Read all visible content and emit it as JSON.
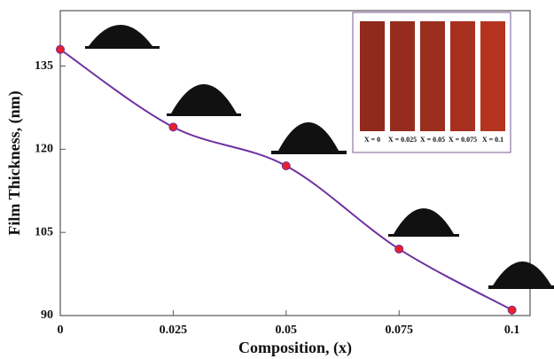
{
  "chart_data": {
    "type": "line",
    "x_label": "Composition, (x)",
    "y_label": "Film Thickness, (nm)",
    "x": [
      0,
      0.025,
      0.05,
      0.075,
      0.1
    ],
    "series": [
      {
        "color": "#7030a0",
        "marker_color": "#e8202a",
        "values": [
          138,
          124,
          117,
          102,
          91
        ]
      }
    ],
    "xlim": [
      0,
      0.104
    ],
    "ylim": [
      90,
      145
    ],
    "xticks": [
      0,
      0.025,
      0.05,
      0.075,
      0.1
    ],
    "yticks": [
      90,
      105,
      120,
      135
    ],
    "inset": {
      "swatches": [
        {
          "label": "X = 0",
          "color": "#8f2a1c"
        },
        {
          "label": "X = 0.025",
          "color": "#962c1e"
        },
        {
          "label": "X = 0.05",
          "color": "#9a2e1f"
        },
        {
          "label": "X = 0.075",
          "color": "#a8301f"
        },
        {
          "label": "X = 0.1",
          "color": "#b5341f"
        }
      ]
    }
  }
}
